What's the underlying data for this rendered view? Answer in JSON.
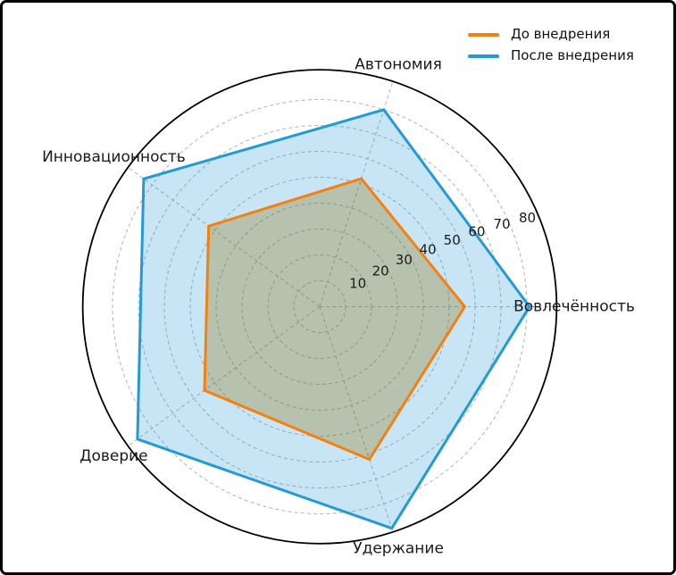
{
  "chart_data": {
    "type": "radar",
    "title": "",
    "background_color": "#ffffff",
    "axes": [
      "Вовлечённость",
      "Автономия",
      "Инновационность",
      "Доверие",
      "Удержание"
    ],
    "axis_angles_deg": [
      0,
      72,
      144,
      216,
      288
    ],
    "series": [
      {
        "name": "До внедрения",
        "line_color": "#f5800e",
        "fill_color": "rgba(141,110,10,0.30)",
        "values": [
          56,
          52,
          53,
          55,
          62
        ]
      },
      {
        "name": "После внедрения",
        "line_color": "#229ad5",
        "fill_color": "rgba(34,153,216,0.25)",
        "values": [
          81,
          80,
          84,
          87,
          90
        ]
      }
    ],
    "r_ticks": [
      10,
      20,
      30,
      40,
      50,
      60,
      70,
      80
    ],
    "r_range": [
      0,
      91.5
    ],
    "grid": "dashed gray circles and spokes, solid black outer circle",
    "grid_color": "#b3b3b3",
    "outer_circle_color": "#000000",
    "text_color": "#1a1a1a",
    "legend_position": "upper right",
    "legend_frame": "none"
  }
}
